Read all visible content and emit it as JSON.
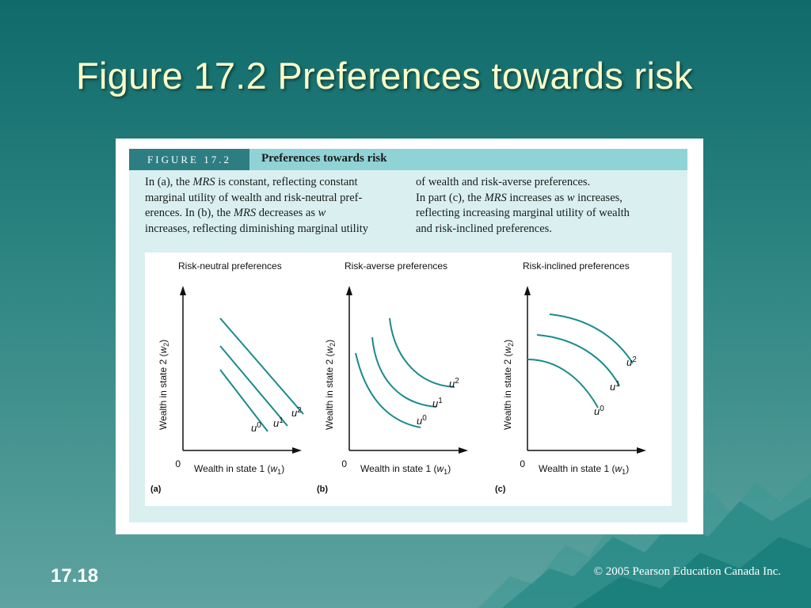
{
  "slide": {
    "title": "Figure 17.2 Preferences towards risk",
    "number": "17.18",
    "copyright": "© 2005 Pearson Education Canada Inc."
  },
  "figure": {
    "label": "FIGURE 17.2",
    "heading": "Preferences towards risk",
    "caption_left": [
      [
        {
          "t": "In (a), the "
        },
        {
          "t": "MRS",
          "i": true
        },
        {
          "t": " is constant, reflecting constant"
        }
      ],
      [
        {
          "t": "marginal utility of wealth and risk-neutral pref-"
        }
      ],
      [
        {
          "t": "erences. In (b), the "
        },
        {
          "t": "MRS",
          "i": true
        },
        {
          "t": " decreases as "
        },
        {
          "t": "w",
          "i": true
        }
      ],
      [
        {
          "t": "increases, reflecting diminishing marginal utility"
        }
      ]
    ],
    "caption_right": [
      [
        {
          "t": "of wealth and risk-averse preferences."
        }
      ],
      [
        {
          "t": "In part (c), the "
        },
        {
          "t": "MRS",
          "i": true
        },
        {
          "t": " increases as "
        },
        {
          "t": "w",
          "i": true
        },
        {
          "t": " increases,"
        }
      ],
      [
        {
          "t": "reflecting increasing marginal utility of wealth"
        }
      ],
      [
        {
          "t": "and risk-inclined preferences."
        }
      ]
    ],
    "panels": [
      {
        "id": "a",
        "title": "Risk-neutral preferences",
        "panel_label": "(a)",
        "shape": "linear",
        "x_label": "Wealth in state 1 (w1)",
        "y_label": "Wealth in state 2 (w2)",
        "origin": "0",
        "curves": [
          "u0",
          "u1",
          "u2"
        ]
      },
      {
        "id": "b",
        "title": "Risk-averse preferences",
        "panel_label": "(b)",
        "shape": "convex",
        "x_label": "Wealth in state 1 (w1)",
        "y_label": "Wealth in state 2 (w2)",
        "origin": "0",
        "curves": [
          "u0",
          "u1",
          "u2"
        ]
      },
      {
        "id": "c",
        "title": "Risk-inclined preferences",
        "panel_label": "(c)",
        "shape": "concave",
        "x_label": "Wealth in state 1 (w1)",
        "y_label": "Wealth in state 2 (w2)",
        "origin": "0",
        "curves": [
          "u0",
          "u1",
          "u2"
        ]
      }
    ],
    "colors": {
      "curve": "#1a8a8c",
      "axis": "#111111",
      "label_bar": "#2d7e82",
      "header_bar": "#90d3d6",
      "caption_bg": "#daf0f0"
    }
  }
}
